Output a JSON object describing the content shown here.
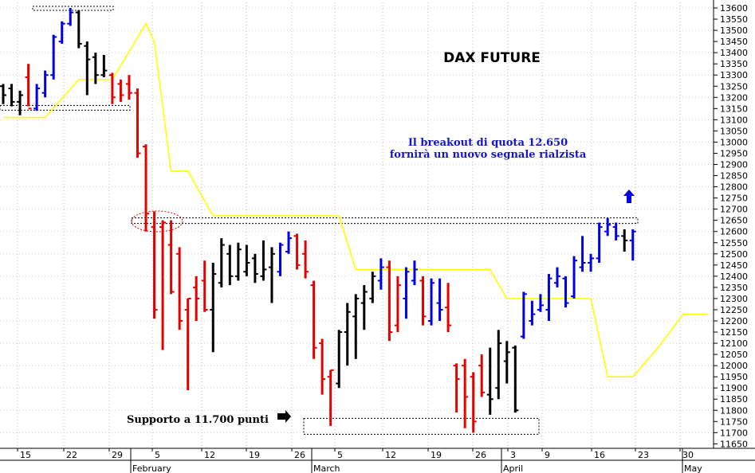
{
  "chart_data": {
    "type": "ohlc-bar",
    "title": "DAX FUTURE",
    "annotation_breakout": [
      "Il breakout di quota 12.650",
      "fornirà un nuovo segnale rialzista"
    ],
    "annotation_support": "Supporto a 11.700 punti",
    "ylim": [
      11650,
      13650
    ],
    "y_ticks": [
      11650,
      11700,
      11750,
      11800,
      11850,
      11900,
      11950,
      12000,
      12050,
      12100,
      12150,
      12200,
      12250,
      12300,
      12350,
      12400,
      12450,
      12500,
      12550,
      12600,
      12650,
      12700,
      12750,
      12800,
      12850,
      12900,
      12950,
      13000,
      13050,
      13100,
      13150,
      13200,
      13250,
      13300,
      13350,
      13400,
      13450,
      13500,
      13550,
      13600
    ],
    "x_day_labels": [
      "15",
      "22",
      "29",
      "5",
      "12",
      "19",
      "26",
      "5",
      "12",
      "19",
      "26",
      "3",
      "9",
      "16",
      "23",
      "30"
    ],
    "x_month_labels": [
      "February",
      "March",
      "April",
      "May"
    ],
    "levels": {
      "resistance": 12650,
      "support": 11700,
      "top_box": 13600,
      "left_box": 13150
    },
    "colors": {
      "up": "#0000e6",
      "down": "#e60000",
      "neutral": "#000000",
      "stop_line": "#ffff00",
      "annotation": "#1515c8"
    },
    "bars": [
      {
        "color": "neutral",
        "high": 13260,
        "low": 13170,
        "open": 13250,
        "close": 13210
      },
      {
        "color": "neutral",
        "high": 13260,
        "low": 13160,
        "open": 13240,
        "close": 13180
      },
      {
        "color": "neutral",
        "high": 13230,
        "low": 13120,
        "open": 13180,
        "close": 13210
      },
      {
        "color": "down",
        "high": 13350,
        "low": 13160,
        "open": 13290,
        "close": 13150
      },
      {
        "color": "up",
        "high": 13260,
        "low": 13140,
        "open": 13150,
        "close": 13240
      },
      {
        "color": "up",
        "high": 13320,
        "low": 13200,
        "open": 13220,
        "close": 13300
      },
      {
        "color": "up",
        "high": 13480,
        "low": 13280,
        "open": 13300,
        "close": 13470
      },
      {
        "color": "up",
        "high": 13540,
        "low": 13440,
        "open": 13450,
        "close": 13530
      },
      {
        "color": "up",
        "high": 13600,
        "low": 13520,
        "open": 13530,
        "close": 13580
      },
      {
        "color": "neutral",
        "high": 13590,
        "low": 13420,
        "open": 13580,
        "close": 13440
      },
      {
        "color": "neutral",
        "high": 13450,
        "low": 13210,
        "open": 13430,
        "close": 13370
      },
      {
        "color": "neutral",
        "high": 13400,
        "low": 13260,
        "open": 13380,
        "close": 13300
      },
      {
        "color": "neutral",
        "high": 13390,
        "low": 13290,
        "open": 13300,
        "close": 13320
      },
      {
        "color": "down",
        "high": 13310,
        "low": 13170,
        "open": 13300,
        "close": 13200
      },
      {
        "color": "down",
        "high": 13280,
        "low": 13180,
        "open": 13260,
        "close": 13210
      },
      {
        "color": "down",
        "high": 13300,
        "low": 13190,
        "open": 13260,
        "close": 13220
      },
      {
        "color": "down",
        "high": 13240,
        "low": 12930,
        "open": 13220,
        "close": 12950
      },
      {
        "color": "down",
        "high": 12990,
        "low": 12600,
        "open": 12980,
        "close": 12680
      },
      {
        "color": "down",
        "high": 12690,
        "low": 12210,
        "open": 12620,
        "close": 12250
      },
      {
        "color": "down",
        "high": 12650,
        "low": 12070,
        "open": 12620,
        "close": 12640
      },
      {
        "color": "down",
        "high": 12650,
        "low": 12320,
        "open": 12540,
        "close": 12330
      },
      {
        "color": "down",
        "high": 12530,
        "low": 12160,
        "open": 12500,
        "close": 12200
      },
      {
        "color": "down",
        "high": 12300,
        "low": 11890,
        "open": 12250,
        "close": 12300
      },
      {
        "color": "down",
        "high": 12400,
        "low": 12200,
        "open": 12350,
        "close": 12300
      },
      {
        "color": "down",
        "high": 12470,
        "low": 12240,
        "open": 12380,
        "close": 12250
      },
      {
        "color": "neutral",
        "high": 12460,
        "low": 12060,
        "open": 12250,
        "close": 12410
      },
      {
        "color": "neutral",
        "high": 12570,
        "low": 12350,
        "open": 12370,
        "close": 12540
      },
      {
        "color": "neutral",
        "high": 12540,
        "low": 12360,
        "open": 12500,
        "close": 12400
      },
      {
        "color": "neutral",
        "high": 12550,
        "low": 12380,
        "open": 12400,
        "close": 12520
      },
      {
        "color": "neutral",
        "high": 12540,
        "low": 12400,
        "open": 12420,
        "close": 12460
      },
      {
        "color": "neutral",
        "high": 12500,
        "low": 12370,
        "open": 12480,
        "close": 12410
      },
      {
        "color": "neutral",
        "high": 12560,
        "low": 12380,
        "open": 12400,
        "close": 12430
      },
      {
        "color": "neutral",
        "high": 12530,
        "low": 12280,
        "open": 12440,
        "close": 12500
      },
      {
        "color": "up",
        "high": 12550,
        "low": 12400,
        "open": 12420,
        "close": 12540
      },
      {
        "color": "up",
        "high": 12600,
        "low": 12500,
        "open": 12510,
        "close": 12570
      },
      {
        "color": "down",
        "high": 12590,
        "low": 12430,
        "open": 12580,
        "close": 12450
      },
      {
        "color": "down",
        "high": 12560,
        "low": 12390,
        "open": 12500,
        "close": 12420
      },
      {
        "color": "down",
        "high": 12380,
        "low": 12030,
        "open": 12360,
        "close": 12080
      },
      {
        "color": "down",
        "high": 12120,
        "low": 11870,
        "open": 12100,
        "close": 11940
      },
      {
        "color": "down",
        "high": 11980,
        "low": 11730,
        "open": 11950,
        "close": 11980
      },
      {
        "color": "neutral",
        "high": 12160,
        "low": 11900,
        "open": 11920,
        "close": 12150
      },
      {
        "color": "neutral",
        "high": 12280,
        "low": 12000,
        "open": 12150,
        "close": 12240
      },
      {
        "color": "neutral",
        "high": 12320,
        "low": 12030,
        "open": 12220,
        "close": 12300
      },
      {
        "color": "neutral",
        "high": 12360,
        "low": 12160,
        "open": 12280,
        "close": 12330
      },
      {
        "color": "neutral",
        "high": 12420,
        "low": 12280,
        "open": 12300,
        "close": 12400
      },
      {
        "color": "up",
        "high": 12480,
        "low": 12340,
        "open": 12380,
        "close": 12440
      },
      {
        "color": "down",
        "high": 12470,
        "low": 12110,
        "open": 12440,
        "close": 12150
      },
      {
        "color": "down",
        "high": 12400,
        "low": 12150,
        "open": 12180,
        "close": 12360
      },
      {
        "color": "up",
        "high": 12440,
        "low": 12210,
        "open": 12300,
        "close": 12420
      },
      {
        "color": "up",
        "high": 12470,
        "low": 12360,
        "open": 12380,
        "close": 12430
      },
      {
        "color": "down",
        "high": 12400,
        "low": 12180,
        "open": 12380,
        "close": 12220
      },
      {
        "color": "up",
        "high": 12390,
        "low": 12180,
        "open": 12200,
        "close": 12370
      },
      {
        "color": "up",
        "high": 12390,
        "low": 12200,
        "open": 12280,
        "close": 12250
      },
      {
        "color": "down",
        "high": 12370,
        "low": 12150,
        "open": 12260,
        "close": 12180
      },
      {
        "color": "down",
        "high": 12010,
        "low": 11790,
        "open": 12000,
        "close": 11940
      },
      {
        "color": "down",
        "high": 12030,
        "low": 11720,
        "open": 12000,
        "close": 11860
      },
      {
        "color": "down",
        "high": 11970,
        "low": 11700,
        "open": 11950,
        "close": 11750
      },
      {
        "color": "down",
        "high": 12050,
        "low": 11860,
        "open": 12000,
        "close": 11880
      },
      {
        "color": "neutral",
        "high": 12080,
        "low": 11780,
        "open": 11870,
        "close": 11850
      },
      {
        "color": "neutral",
        "high": 12160,
        "low": 11850,
        "open": 11900,
        "close": 12100
      },
      {
        "color": "neutral",
        "high": 12110,
        "low": 11920,
        "open": 12020,
        "close": 12060
      },
      {
        "color": "neutral",
        "high": 12090,
        "low": 11790,
        "open": 12080,
        "close": 11800
      },
      {
        "color": "up",
        "high": 12330,
        "low": 12120,
        "open": 12130,
        "close": 12320
      },
      {
        "color": "up",
        "high": 12290,
        "low": 12180,
        "open": 12200,
        "close": 12230
      },
      {
        "color": "up",
        "high": 12320,
        "low": 12240,
        "open": 12250,
        "close": 12270
      },
      {
        "color": "up",
        "high": 12410,
        "low": 12200,
        "open": 12250,
        "close": 12390
      },
      {
        "color": "up",
        "high": 12440,
        "low": 12350,
        "open": 12370,
        "close": 12400
      },
      {
        "color": "up",
        "high": 12400,
        "low": 12260,
        "open": 12390,
        "close": 12280
      },
      {
        "color": "up",
        "high": 12490,
        "low": 12300,
        "open": 12310,
        "close": 12470
      },
      {
        "color": "up",
        "high": 12580,
        "low": 12420,
        "open": 12440,
        "close": 12460
      },
      {
        "color": "up",
        "high": 12500,
        "low": 12420,
        "open": 12460,
        "close": 12480
      },
      {
        "color": "up",
        "high": 12640,
        "low": 12460,
        "open": 12480,
        "close": 12620
      },
      {
        "color": "up",
        "high": 12660,
        "low": 12580,
        "open": 12600,
        "close": 12630
      },
      {
        "color": "up",
        "high": 12640,
        "low": 12560,
        "open": 12620,
        "close": 12580
      },
      {
        "color": "neutral",
        "high": 12610,
        "low": 12510,
        "open": 12580,
        "close": 12560
      },
      {
        "color": "up",
        "high": 12610,
        "low": 12470,
        "open": 12560,
        "close": 12600
      }
    ],
    "stop_line": [
      [
        0,
        13110
      ],
      [
        5,
        13110
      ],
      [
        9,
        13280
      ],
      [
        13,
        13280
      ],
      [
        17,
        13530
      ],
      [
        18,
        13450
      ],
      [
        20,
        12870
      ],
      [
        22,
        12870
      ],
      [
        25,
        12670
      ],
      [
        40,
        12670
      ],
      [
        42,
        12430
      ],
      [
        58,
        12430
      ],
      [
        60,
        12300
      ],
      [
        70,
        12300
      ],
      [
        72,
        11950
      ],
      [
        75,
        11950
      ],
      [
        78,
        12080
      ],
      [
        81,
        12230
      ],
      [
        84,
        12230
      ]
    ]
  }
}
